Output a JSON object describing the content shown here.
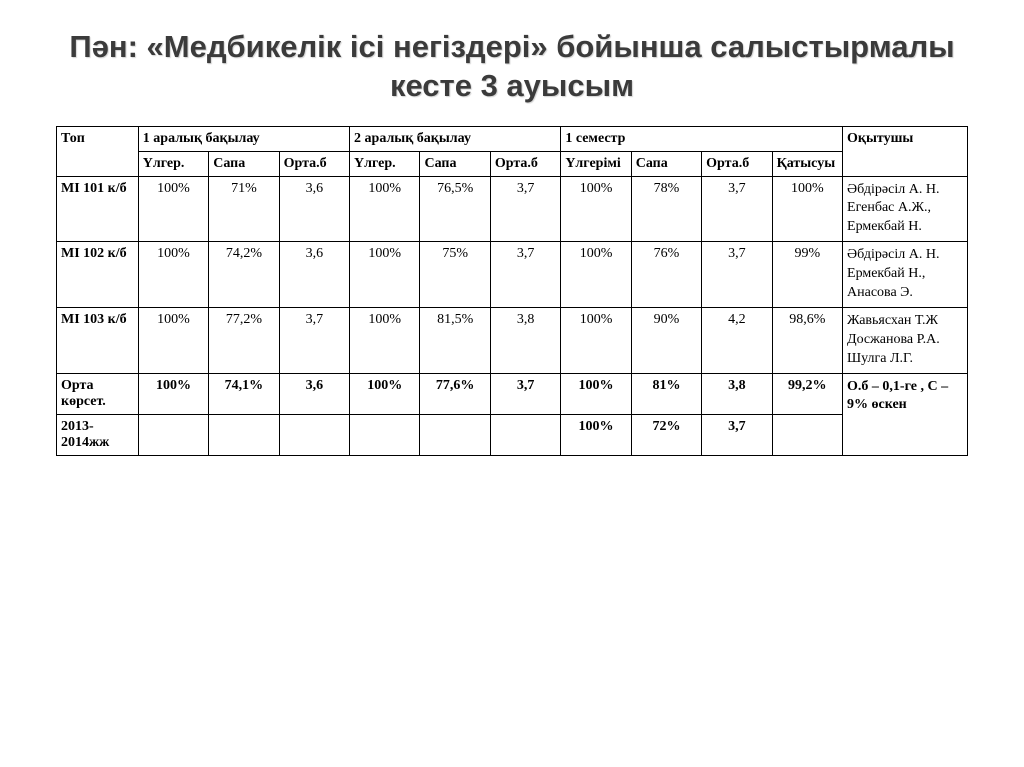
{
  "title": "Пән: «Медбикелік ісі негіздері»  бойынша салыстырмалы кесте 3 ауысым",
  "columns": {
    "group": "Топ",
    "block1": "1 аралық бақылау",
    "block2": "2 аралық бақылау",
    "block3": "1 семестр",
    "teacher": "Оқытушы",
    "sub": {
      "ulg": "Үлгер.",
      "sapa": "Сапа",
      "orta": "Орта.б",
      "ulg2": "Үлгерімі",
      "kat": "Қатысуы"
    }
  },
  "rows": [
    {
      "group": "МІ 101 к/б",
      "b1": {
        "ulg": "100%",
        "sapa": "71%",
        "orta": "3,6"
      },
      "b2": {
        "ulg": "100%",
        "sapa": "76,5%",
        "orta": "3,7"
      },
      "b3": {
        "ulg": "100%",
        "sapa": "78%",
        "orta": "3,7",
        "kat": "100%"
      },
      "teacher": "Әбдірәсіл А. Н.\nЕгенбас А.Ж., Ермекбай Н."
    },
    {
      "group": "МІ 102 к/б",
      "b1": {
        "ulg": "100%",
        "sapa": "74,2%",
        "orta": "3,6"
      },
      "b2": {
        "ulg": "100%",
        "sapa": "75%",
        "orta": "3,7"
      },
      "b3": {
        "ulg": "100%",
        "sapa": "76%",
        "orta": "3,7",
        "kat": "99%"
      },
      "teacher": "Әбдірәсіл А. Н. Ермекбай Н., Анасова Э."
    },
    {
      "group": "МІ 103 к/б",
      "b1": {
        "ulg": "100%",
        "sapa": "77,2%",
        "orta": "3,7"
      },
      "b2": {
        "ulg": "100%",
        "sapa": "81,5%",
        "orta": "3,8"
      },
      "b3": {
        "ulg": "100%",
        "sapa": "90%",
        "orta": "4,2",
        "kat": "98,6%"
      },
      "teacher": "Жавьясхан Т.Ж\nДосжанова Р.А.\nШулга Л.Г."
    }
  ],
  "summary": {
    "label": "Орта көрсет.",
    "b1": {
      "ulg": "100%",
      "sapa": "74,1%",
      "orta": "3,6"
    },
    "b2": {
      "ulg": "100%",
      "sapa": "77,6%",
      "orta": "3,7"
    },
    "b3": {
      "ulg": "100%",
      "sapa": "81%",
      "orta": "3,8",
      "kat": "99,2%"
    },
    "note": "О.б – 0,1-ге , С – 9% өскен"
  },
  "prev": {
    "label": "2013-2014жж",
    "b3": {
      "ulg": "100%",
      "sapa": "72%",
      "orta": "3,7"
    }
  },
  "style": {
    "title_color": "#3b3b3b",
    "border_color": "#000000",
    "background": "#ffffff",
    "font_data": "Times New Roman",
    "font_title": "Verdana"
  }
}
